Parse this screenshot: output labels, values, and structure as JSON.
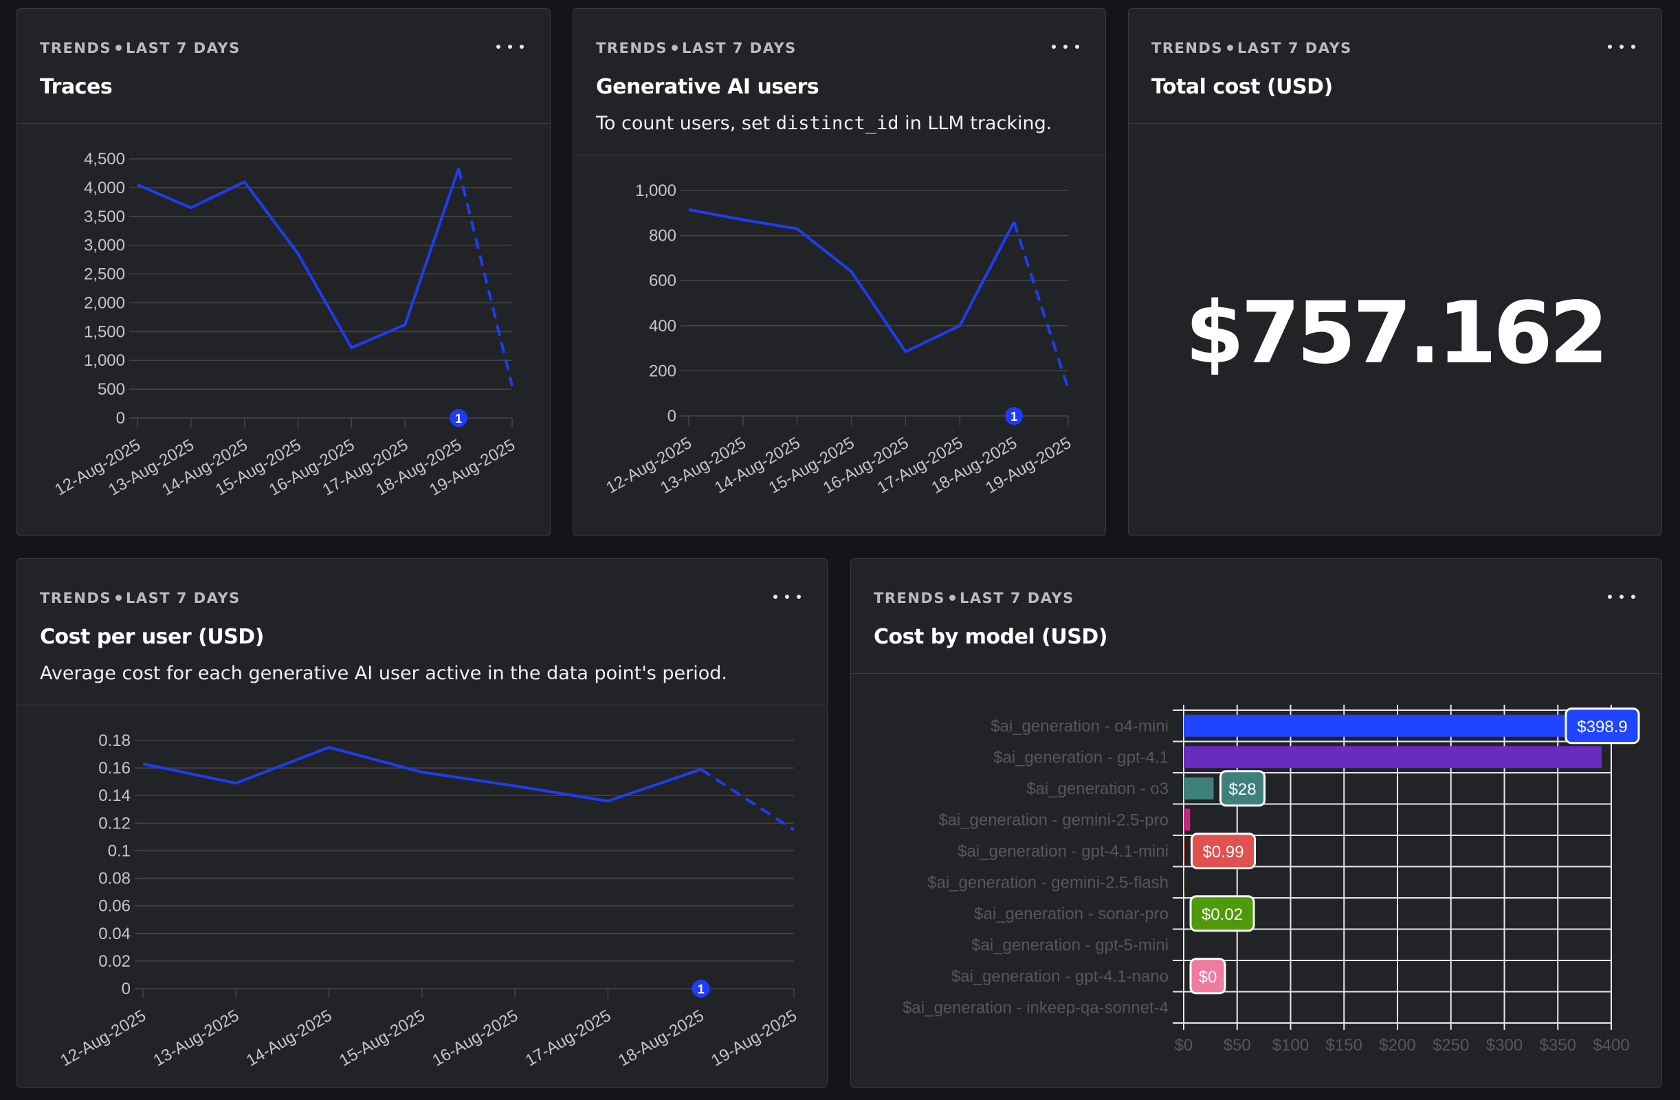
{
  "colors": {
    "line": "#1f3df0",
    "grid": "#45464b",
    "tick_text": "#c4c6cc",
    "bar_axis_text": "#55575d"
  },
  "dates": [
    "12-Aug-2025",
    "13-Aug-2025",
    "14-Aug-2025",
    "15-Aug-2025",
    "16-Aug-2025",
    "17-Aug-2025",
    "18-Aug-2025",
    "19-Aug-2025"
  ],
  "annotation_marker": "1",
  "cards": {
    "traces": {
      "eyebrow_a": "TRENDS",
      "eyebrow_b": "LAST 7 DAYS",
      "title": "Traces",
      "menu_icon": "more-horizontal-icon"
    },
    "users": {
      "eyebrow_a": "TRENDS",
      "eyebrow_b": "LAST 7 DAYS",
      "title": "Generative AI users",
      "subtitle_pre": "To count users, set ",
      "subtitle_code": "distinct_id",
      "subtitle_post": " in LLM tracking.",
      "menu_icon": "more-horizontal-icon"
    },
    "total_cost": {
      "eyebrow_a": "TRENDS",
      "eyebrow_b": "LAST 7 DAYS",
      "title": "Total cost (USD)",
      "value": "$757.162",
      "menu_icon": "more-horizontal-icon"
    },
    "cost_per_user": {
      "eyebrow_a": "TRENDS",
      "eyebrow_b": "LAST 7 DAYS",
      "title": "Cost per user (USD)",
      "subtitle": "Average cost for each generative AI user active in the data point's period.",
      "menu_icon": "more-horizontal-icon"
    },
    "cost_by_model": {
      "eyebrow_a": "TRENDS",
      "eyebrow_b": "LAST 7 DAYS",
      "title": "Cost by model (USD)",
      "menu_icon": "more-horizontal-icon"
    }
  },
  "chart_data": [
    {
      "id": "traces",
      "type": "line",
      "title": "Traces",
      "x": [
        "12-Aug-2025",
        "13-Aug-2025",
        "14-Aug-2025",
        "15-Aug-2025",
        "16-Aug-2025",
        "17-Aug-2025",
        "18-Aug-2025",
        "19-Aug-2025"
      ],
      "series": [
        {
          "name": "Traces",
          "values": [
            4050,
            3650,
            4100,
            2850,
            1220,
            1620,
            4330,
            560
          ]
        }
      ],
      "incomplete_from_index": 6,
      "ylim": [
        0,
        4500
      ],
      "yticks": [
        0,
        500,
        1000,
        1500,
        2000,
        2500,
        3000,
        3500,
        4000,
        4500
      ],
      "ytick_labels": [
        "0",
        "500",
        "1,000",
        "1,500",
        "2,000",
        "2,500",
        "3,000",
        "3,500",
        "4,000",
        "4,500"
      ],
      "annotation_index": 6
    },
    {
      "id": "users",
      "type": "line",
      "title": "Generative AI users",
      "x": [
        "12-Aug-2025",
        "13-Aug-2025",
        "14-Aug-2025",
        "15-Aug-2025",
        "16-Aug-2025",
        "17-Aug-2025",
        "18-Aug-2025",
        "19-Aug-2025"
      ],
      "series": [
        {
          "name": "Generative AI users",
          "values": [
            915,
            870,
            830,
            640,
            285,
            400,
            860,
            120
          ]
        }
      ],
      "incomplete_from_index": 6,
      "ylim": [
        0,
        1000
      ],
      "yticks": [
        0,
        200,
        400,
        600,
        800,
        1000
      ],
      "ytick_labels": [
        "0",
        "200",
        "400",
        "600",
        "800",
        "1,000"
      ],
      "annotation_index": 6
    },
    {
      "id": "cost_per_user",
      "type": "line",
      "title": "Cost per user (USD)",
      "x": [
        "12-Aug-2025",
        "13-Aug-2025",
        "14-Aug-2025",
        "15-Aug-2025",
        "16-Aug-2025",
        "17-Aug-2025",
        "18-Aug-2025",
        "19-Aug-2025"
      ],
      "series": [
        {
          "name": "Cost per user",
          "values": [
            0.163,
            0.149,
            0.175,
            0.157,
            0.147,
            0.136,
            0.159,
            0.115
          ]
        }
      ],
      "incomplete_from_index": 6,
      "ylim": [
        0,
        0.18
      ],
      "yticks": [
        0,
        0.02,
        0.04,
        0.06,
        0.08,
        0.1,
        0.12,
        0.14,
        0.16,
        0.18
      ],
      "ytick_labels": [
        "0",
        "0.02",
        "0.04",
        "0.06",
        "0.08",
        "0.1",
        "0.12",
        "0.14",
        "0.16",
        "0.18"
      ],
      "annotation_index": 6
    },
    {
      "id": "cost_by_model",
      "type": "bar",
      "orientation": "horizontal",
      "title": "Cost by model (USD)",
      "categories": [
        "$ai_generation - o4-mini",
        "$ai_generation - gpt-4.1",
        "$ai_generation - o3",
        "$ai_generation - gemini-2.5-pro",
        "$ai_generation - gpt-4.1-mini",
        "$ai_generation - gemini-2.5-flash",
        "$ai_generation - sonar-pro",
        "$ai_generation - gpt-5-mini",
        "$ai_generation - gpt-4.1-nano",
        "$ai_generation - inkeep-qa-sonnet-4"
      ],
      "values": [
        398.9,
        391,
        28,
        6,
        0.99,
        0.4,
        0.02,
        0.02,
        0,
        0
      ],
      "bar_colors": [
        "#1f45ff",
        "#6a2bbf",
        "#3f7f7c",
        "#c4287b",
        "#e2504f",
        "#8a9a2a",
        "#4e9a0a",
        "#7a7a7a",
        "#f07aa0",
        "#7a7a7a"
      ],
      "value_labels": [
        {
          "index": 0,
          "text": "$398.9",
          "color": "#1f45ff"
        },
        {
          "index": 2,
          "text": "$28",
          "color": "#3f7f7c"
        },
        {
          "index": 4,
          "text": "$0.99",
          "color": "#e2504f"
        },
        {
          "index": 6,
          "text": "$0.02",
          "color": "#4e9a0a"
        },
        {
          "index": 8,
          "text": "$0",
          "color": "#f07aa0"
        }
      ],
      "xlim": [
        0,
        400
      ],
      "xticks": [
        0,
        50,
        100,
        150,
        200,
        250,
        300,
        350,
        400
      ],
      "xtick_labels": [
        "$0",
        "$50",
        "$100",
        "$150",
        "$200",
        "$250",
        "$300",
        "$350",
        "$400"
      ]
    }
  ]
}
